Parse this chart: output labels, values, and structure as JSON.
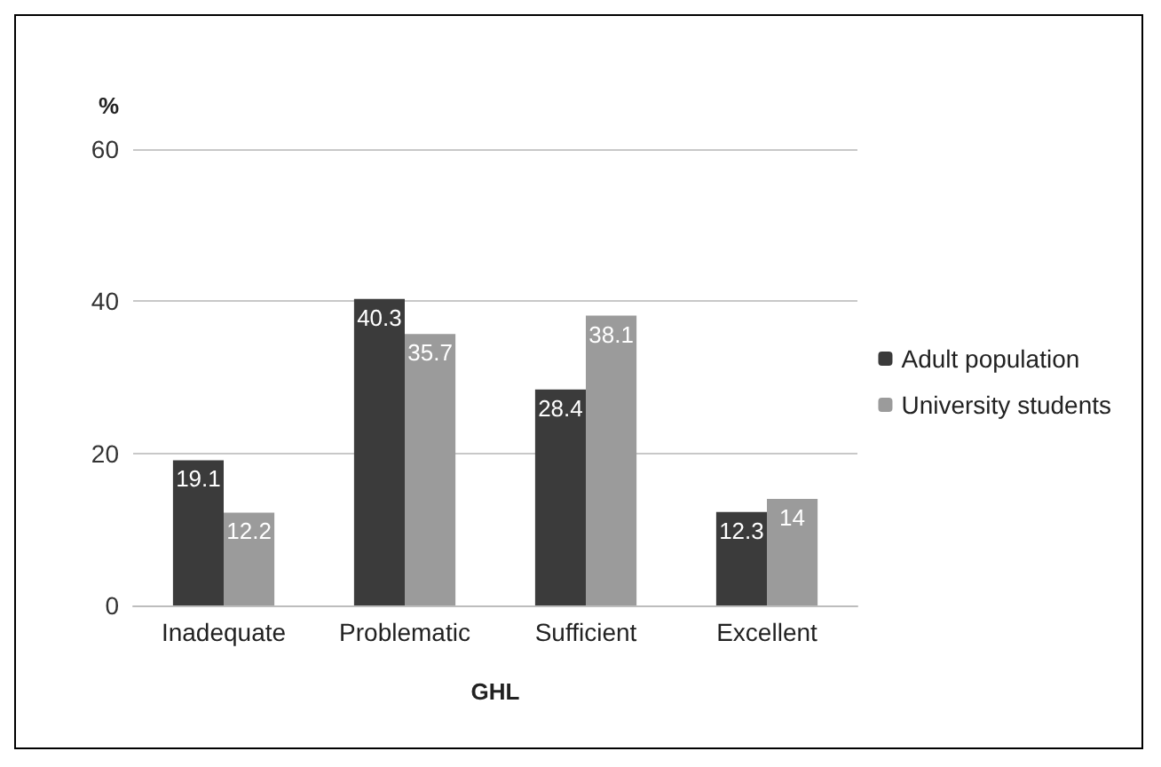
{
  "chart_data": {
    "type": "bar",
    "xlabel": "GHL",
    "ylabel": "%",
    "categories": [
      "Inadequate",
      "Problematic",
      "Sufficient",
      "Excellent"
    ],
    "series": [
      {
        "name": "Adult population",
        "color": "#3b3b3b",
        "values": [
          19.1,
          40.3,
          28.4,
          12.3
        ]
      },
      {
        "name": "University students",
        "color": "#9b9b9b",
        "values": [
          12.2,
          35.7,
          38.1,
          14
        ]
      }
    ],
    "ylim": [
      0,
      60
    ],
    "yticks": [
      0,
      20,
      40,
      60
    ],
    "grid": "y",
    "legend": "right",
    "data_labels": true
  }
}
